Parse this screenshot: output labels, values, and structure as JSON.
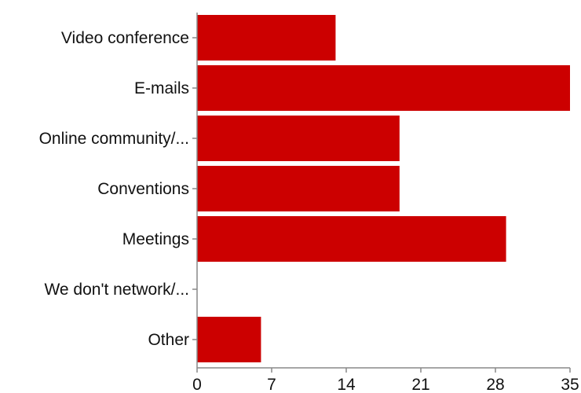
{
  "chart_data": {
    "type": "bar",
    "orientation": "horizontal",
    "categories": [
      "Video conference",
      "E-mails",
      "Online community/...",
      "Conventions",
      "Meetings",
      "We don't network/...",
      "Other"
    ],
    "values": [
      13,
      35,
      19,
      19,
      29,
      0,
      6
    ],
    "xlim": [
      0,
      35
    ],
    "xticks": [
      0,
      7,
      14,
      21,
      28,
      35
    ],
    "xtick_labels": [
      "0",
      "7",
      "14",
      "21",
      "28",
      "35"
    ],
    "title": "",
    "xlabel": "",
    "ylabel": "",
    "grid": false,
    "legend": "none",
    "bar_color": "#cc0000"
  }
}
